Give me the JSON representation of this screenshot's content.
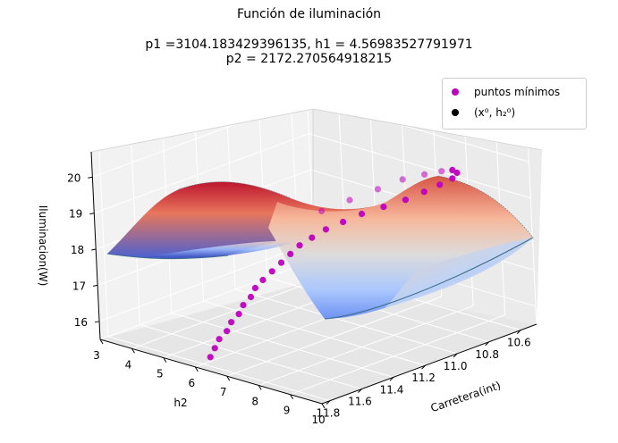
{
  "chart_data": {
    "type": "surface3d",
    "title": "Función de iluminación",
    "subtitle_lines": [
      "p1 =3104.183429396135, h1 = 4.56983527791971",
      "p2 = 2172.270564918215"
    ],
    "xlabel": "h2",
    "ylabel": "Carretera(int)",
    "zlabel": "Iluminacion(W)",
    "xlim": [
      3,
      10
    ],
    "ylim": [
      10.5,
      11.85
    ],
    "zlim": [
      15.5,
      20.7
    ],
    "xticks": [
      "3",
      "4",
      "5",
      "6",
      "7",
      "8",
      "9",
      "10"
    ],
    "yticks": [
      "10.6",
      "10.8",
      "11.0",
      "11.2",
      "11.4",
      "11.6",
      "11.8"
    ],
    "zticks": [
      "16",
      "17",
      "18",
      "19",
      "20"
    ],
    "legend_position": "upper right",
    "legend": [
      {
        "label": "puntos mínimos",
        "color": "#bf00bf"
      },
      {
        "label": "(x⁰, h₂⁰)",
        "color": "#000000"
      }
    ],
    "colormap": "coolwarm",
    "minimum_points": {
      "h2": [
        6.5,
        6.5,
        6.5,
        6.6,
        6.6,
        6.7,
        6.7,
        6.8,
        6.8,
        6.9,
        7.0,
        7.1,
        7.2,
        7.3,
        7.5,
        7.7,
        8.0,
        8.3,
        8.7,
        9.1,
        9.4,
        9.6,
        9.7,
        9.6,
        9.3,
        8.9,
        8.4,
        7.9,
        7.4,
        6.9,
        6.4
      ],
      "carretera": [
        11.85,
        11.82,
        11.79,
        11.76,
        11.73,
        11.7,
        11.67,
        11.64,
        11.61,
        11.58,
        11.54,
        11.5,
        11.46,
        11.42,
        11.38,
        11.33,
        11.28,
        11.22,
        11.16,
        11.1,
        11.04,
        10.98,
        10.92,
        10.87,
        10.84,
        10.83,
        10.84,
        10.88,
        10.94,
        11.02,
        11.1
      ],
      "iluminacion": [
        15.9,
        16.1,
        16.3,
        16.5,
        16.7,
        16.9,
        17.1,
        17.3,
        17.5,
        17.7,
        17.9,
        18.1,
        18.3,
        18.5,
        18.7,
        18.9,
        19.1,
        19.3,
        19.5,
        19.7,
        19.9,
        20.05,
        20.15,
        20.2,
        20.15,
        20.0,
        19.8,
        19.6,
        19.3,
        19.0,
        18.7
      ]
    }
  }
}
